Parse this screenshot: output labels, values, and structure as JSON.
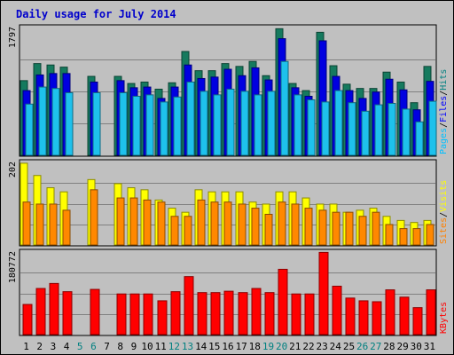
{
  "chart_data": {
    "type": "bar",
    "title": "Daily usage for July 2014",
    "days": [
      "1",
      "2",
      "3",
      "4",
      "5",
      "6",
      "7",
      "8",
      "9",
      "10",
      "11",
      "12",
      "13",
      "14",
      "15",
      "16",
      "17",
      "18",
      "19",
      "20",
      "21",
      "22",
      "23",
      "24",
      "25",
      "26",
      "27",
      "28",
      "29",
      "30",
      "31"
    ],
    "weekend_days": [
      "5",
      "6",
      "12",
      "13",
      "19",
      "20",
      "26",
      "27"
    ],
    "panels": [
      {
        "name": "hits-files-pages",
        "ymax": 1797,
        "ymax_label": "1797",
        "legend": [
          {
            "text": "Pages",
            "color": "#00c0ff"
          },
          {
            "text": "/",
            "color": "#000000"
          },
          {
            "text": "Files",
            "color": "#0000ff"
          },
          {
            "text": "/",
            "color": "#000000"
          },
          {
            "text": "Hits",
            "color": "#008080"
          }
        ],
        "series": [
          {
            "name": "Hits",
            "color": "#157a5e",
            "values": [
              1050,
              1290,
              1270,
              1240,
              null,
              1110,
              null,
              1110,
              1010,
              1030,
              930,
              1020,
              1460,
              1190,
              1190,
              1290,
              1250,
              1320,
              1120,
              1780,
              1010,
              910,
              1730,
              1260,
              1000,
              940,
              940,
              1170,
              1030,
              740,
              1250
            ]
          },
          {
            "name": "Files",
            "color": "#0000e0",
            "values": [
              910,
              1130,
              1150,
              1150,
              null,
              1030,
              null,
              1050,
              950,
              960,
              800,
              960,
              1270,
              1080,
              1100,
              1210,
              1120,
              1230,
              1060,
              1640,
              950,
              830,
              1610,
              1110,
              910,
              800,
              890,
              1070,
              920,
              640,
              1040
            ]
          },
          {
            "name": "Pages",
            "color": "#1ec1ec",
            "values": [
              720,
              960,
              940,
              880,
              null,
              880,
              null,
              880,
              830,
              850,
              750,
              820,
              1030,
              900,
              850,
              930,
              900,
              850,
              900,
              1320,
              850,
              780,
              750,
              910,
              740,
              620,
              710,
              730,
              650,
              470,
              760
            ]
          }
        ]
      },
      {
        "name": "visits-sites",
        "ymax": 202,
        "ymax_label": "202",
        "legend": [
          {
            "text": "Sites",
            "color": "#ff8000"
          },
          {
            "text": "/",
            "color": "#000000"
          },
          {
            "text": "Visits",
            "color": "#ffff00"
          }
        ],
        "series": [
          {
            "name": "Visits",
            "color": "#ffff00",
            "values": [
              200,
              170,
              140,
              130,
              null,
              160,
              null,
              150,
              140,
              135,
              110,
              90,
              80,
              135,
              130,
              130,
              130,
              105,
              100,
              130,
              130,
              115,
              100,
              100,
              80,
              85,
              90,
              70,
              60,
              55,
              60
            ]
          },
          {
            "name": "Sites",
            "color": "#ff8800",
            "values": [
              105,
              100,
              100,
              85,
              null,
              135,
              null,
              115,
              115,
              110,
              105,
              70,
              70,
              110,
              105,
              105,
              100,
              90,
              75,
              105,
              100,
              90,
              85,
              80,
              80,
              70,
              80,
              50,
              40,
              40,
              50
            ]
          }
        ]
      },
      {
        "name": "kbytes",
        "ymax": 180772,
        "ymax_label": "180772",
        "legend": [
          {
            "text": "KBytes",
            "color": "#ff0000"
          }
        ],
        "series": [
          {
            "name": "KBytes",
            "color": "#ff0000",
            "values": [
              66000,
              101000,
              112000,
              94000,
              null,
              99000,
              null,
              89000,
              89000,
              89000,
              74000,
              94000,
              127000,
              92000,
              92000,
              95000,
              92000,
              101000,
              92000,
              143000,
              89000,
              89000,
              180000,
              106000,
              80000,
              74000,
              72000,
              98000,
              82000,
              59000,
              98000
            ]
          }
        ]
      }
    ]
  }
}
